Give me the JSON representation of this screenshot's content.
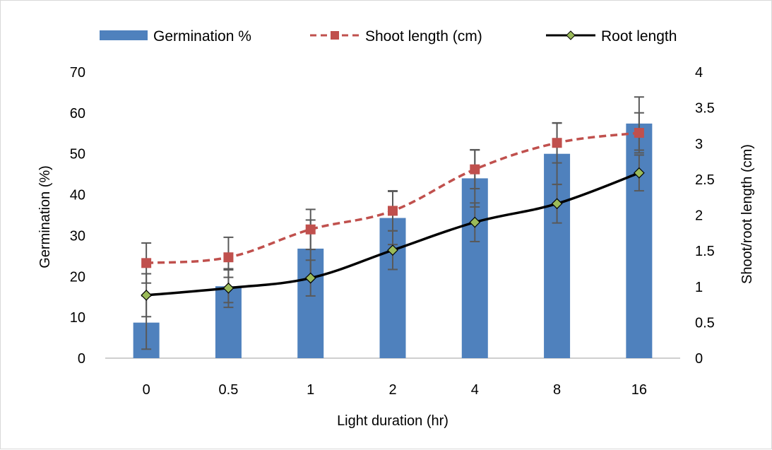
{
  "chart_data": {
    "type": "bar",
    "title": "",
    "xlabel": "Light duration (hr)",
    "ylabel": "Germination (%)",
    "y2label": "Shoot/root length (cm)",
    "categories": [
      "0",
      "0.5",
      "1",
      "2",
      "4",
      "8",
      "16"
    ],
    "ylim": [
      0,
      70
    ],
    "y_ticks": [
      "0",
      "10",
      "20",
      "30",
      "40",
      "50",
      "60",
      "70"
    ],
    "y2lim": [
      0,
      4
    ],
    "y2_ticks": [
      "0",
      "0.5",
      "1",
      "1.5",
      "2",
      "2.5",
      "3",
      "3.5",
      "4"
    ],
    "grid": false,
    "legend_position": "top",
    "series": [
      {
        "name": "Germination %",
        "type": "bar",
        "axis": "left",
        "color": "#4f81bd",
        "values": [
          8.7,
          17.6,
          26.8,
          34.3,
          44,
          50,
          57.4
        ],
        "errors": [
          6.5,
          4,
          7,
          6.5,
          7,
          7.5,
          6.5
        ]
      },
      {
        "name": "Shoot length (cm)",
        "type": "line",
        "axis": "right",
        "line_style": "dashed",
        "marker": "square",
        "color": "#c0504d",
        "values": [
          1.33,
          1.41,
          1.8,
          2.06,
          2.64,
          3.01,
          3.15
        ],
        "errors": [
          0.28,
          0.28,
          0.28,
          0.28,
          0.27,
          0.28,
          0.28
        ]
      },
      {
        "name": "Root length",
        "type": "line",
        "axis": "right",
        "line_style": "solid",
        "marker": "diamond",
        "color": "#000000",
        "marker_fill": "#9bbb59",
        "values": [
          0.88,
          0.98,
          1.12,
          1.51,
          1.9,
          2.16,
          2.59
        ],
        "errors": [
          0.3,
          0.27,
          0.25,
          0.27,
          0.27,
          0.27,
          0.25
        ]
      }
    ]
  }
}
